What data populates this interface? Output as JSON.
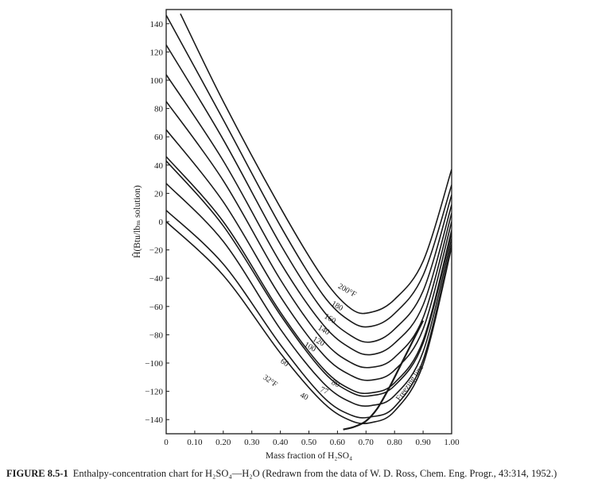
{
  "chart_data": {
    "type": "line",
    "xlabel": "Mass fraction of H₂SO₄",
    "ylabel": "Ĥ(Btu/lbₘ solution)",
    "xlim": [
      0,
      1.0
    ],
    "ylim": [
      -150,
      150
    ],
    "x_ticks": [
      0,
      0.1,
      0.2,
      0.3,
      0.4,
      0.5,
      0.6,
      0.7,
      0.8,
      0.9,
      1.0
    ],
    "x_tick_labels": [
      "0",
      "0.10",
      "0.20",
      "0.30",
      "0.40",
      "0.50",
      "0.60",
      "0.70",
      "0.80",
      "0.90",
      "1.00"
    ],
    "y_ticks": [
      140,
      120,
      100,
      80,
      60,
      40,
      20,
      0,
      -20,
      -40,
      -60,
      -80,
      -100,
      -120,
      -140
    ],
    "y_tick_labels": [
      "140",
      "120",
      "100",
      "80",
      "60",
      "40",
      "20",
      "0",
      "−20",
      "−40",
      "−60",
      "−80",
      "−100",
      "−120",
      "−140"
    ],
    "grid": false,
    "series": [
      {
        "name": "200°F",
        "x": [
          0.05,
          0.2,
          0.4,
          0.55,
          0.65,
          0.72,
          0.8,
          0.9,
          1.0
        ],
        "y": [
          147,
          85,
          10,
          -40,
          -62,
          -64,
          -55,
          -28,
          37
        ]
      },
      {
        "name": "180",
        "x": [
          0,
          0.2,
          0.4,
          0.55,
          0.65,
          0.72,
          0.8,
          0.9,
          1.0
        ],
        "y": [
          146,
          72,
          -3,
          -52,
          -71,
          -74,
          -65,
          -38,
          26
        ]
      },
      {
        "name": "160",
        "x": [
          0,
          0.2,
          0.4,
          0.55,
          0.65,
          0.72,
          0.8,
          0.9,
          1.0
        ],
        "y": [
          125,
          58,
          -16,
          -63,
          -81,
          -85,
          -76,
          -49,
          19
        ]
      },
      {
        "name": "140",
        "x": [
          0,
          0.2,
          0.4,
          0.55,
          0.65,
          0.72,
          0.8,
          0.9,
          1.0
        ],
        "y": [
          104,
          43,
          -29,
          -73,
          -90,
          -94,
          -86,
          -59,
          12
        ]
      },
      {
        "name": "120",
        "x": [
          0,
          0.2,
          0.4,
          0.55,
          0.65,
          0.72,
          0.8,
          0.9,
          1.0
        ],
        "y": [
          85,
          29,
          -41,
          -84,
          -100,
          -103,
          -96,
          -68,
          6
        ]
      },
      {
        "name": "100",
        "x": [
          0,
          0.2,
          0.4,
          0.55,
          0.65,
          0.72,
          0.8,
          0.9,
          1.0
        ],
        "y": [
          65,
          14,
          -53,
          -94,
          -109,
          -112,
          -105,
          -76,
          0
        ]
      },
      {
        "name": "80",
        "x": [
          0,
          0.2,
          0.4,
          0.55,
          0.65,
          0.72,
          0.8,
          0.9,
          1.0
        ],
        "y": [
          46,
          0,
          -64,
          -104,
          -119,
          -121,
          -114,
          -84,
          -6
        ]
      },
      {
        "name": "77",
        "x": [
          0,
          0.2,
          0.4,
          0.55,
          0.65,
          0.72,
          0.8,
          0.9,
          1.0
        ],
        "y": [
          43,
          -3,
          -66,
          -106,
          -121,
          -123,
          -116,
          -86,
          -8
        ]
      },
      {
        "name": "60",
        "x": [
          0,
          0.2,
          0.4,
          0.55,
          0.65,
          0.72,
          0.8,
          0.9,
          1.0
        ],
        "y": [
          27,
          -14,
          -76,
          -114,
          -128,
          -130,
          -123,
          -92,
          -12
        ]
      },
      {
        "name": "40",
        "x": [
          0,
          0.2,
          0.4,
          0.55,
          0.65,
          0.72,
          0.8,
          0.9,
          1.0
        ],
        "y": [
          8,
          -30,
          -87,
          -124,
          -137,
          -138,
          -131,
          -98,
          -16
        ]
      },
      {
        "name": "32°F",
        "x": [
          0,
          0.2,
          0.4,
          0.55,
          0.65,
          0.72,
          0.8,
          0.9,
          1.0
        ],
        "y": [
          0,
          -38,
          -93,
          -128,
          -141,
          -142,
          -134,
          -101,
          -18
        ]
      }
    ],
    "freezing_line": {
      "name": "Freezing line",
      "x": [
        0.62,
        0.66,
        0.7,
        0.74,
        0.78,
        0.82,
        0.86,
        0.9
      ],
      "y": [
        -147,
        -145,
        -141,
        -132,
        -118,
        -102,
        -86,
        -70
      ]
    },
    "curve_labels": [
      {
        "text": "200°F",
        "x": 0.63,
        "y": -50,
        "angle": 30
      },
      {
        "text": "180",
        "x": 0.595,
        "y": -61,
        "angle": 30
      },
      {
        "text": "160",
        "x": 0.57,
        "y": -70,
        "angle": 30
      },
      {
        "text": "140",
        "x": 0.548,
        "y": -78,
        "angle": 30
      },
      {
        "text": "120",
        "x": 0.53,
        "y": -86,
        "angle": 30
      },
      {
        "text": "100",
        "x": 0.5,
        "y": -90,
        "angle": 30
      },
      {
        "text": "80",
        "x": 0.59,
        "y": -116,
        "angle": 25
      },
      {
        "text": "77",
        "x": 0.55,
        "y": -121,
        "angle": 25
      },
      {
        "text": "60",
        "x": 0.41,
        "y": -101,
        "angle": 35
      },
      {
        "text": "40",
        "x": 0.48,
        "y": -125,
        "angle": 25
      },
      {
        "text": "32°F",
        "x": 0.36,
        "y": -114,
        "angle": 35
      },
      {
        "text": "Freezing line",
        "x": 0.86,
        "y": -115,
        "angle": -55
      }
    ],
    "caption": {
      "label": "FIGURE 8.5-1",
      "text": "Enthalpy-concentration chart for H₂SO₄—H₂O (Redrawn from the data of W. D. Ross, Chem. Eng. Progr., 43:314, 1952.)"
    }
  }
}
